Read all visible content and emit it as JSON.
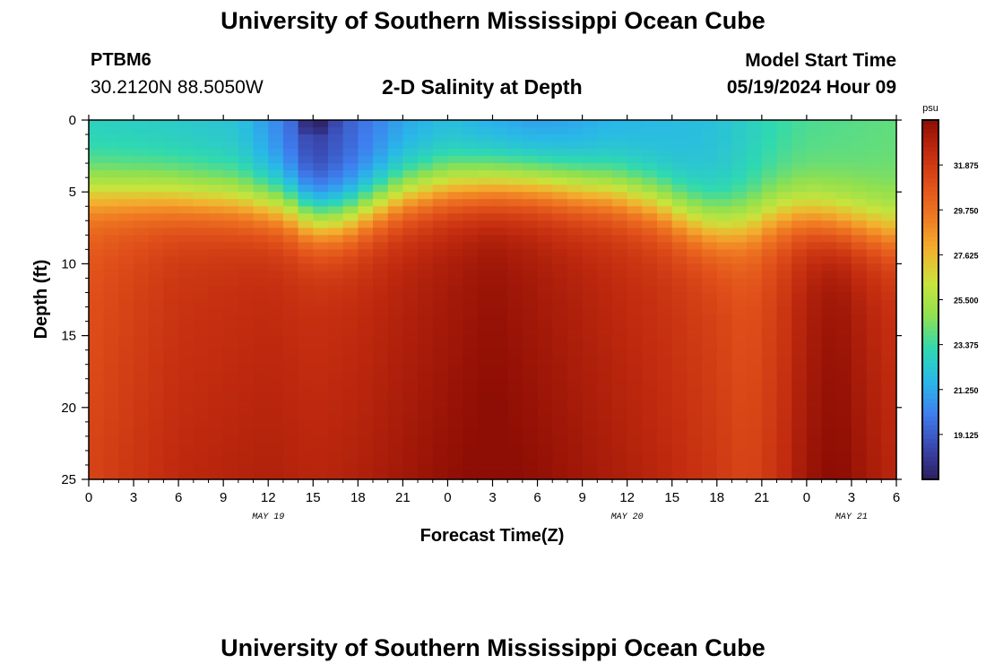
{
  "page": {
    "title": "University of Southern Mississippi Ocean Cube",
    "footer_title": "University of Southern Mississippi Ocean Cube"
  },
  "station": {
    "id": "PTBM6",
    "coords": "30.2120N  88.5050W"
  },
  "model": {
    "start_label": "Model Start Time",
    "start_value": "05/19/2024 Hour 09"
  },
  "colors": {
    "scale": [
      "#2c1e5e",
      "#3a48b0",
      "#3f7ef0",
      "#29b8e8",
      "#2fd9b0",
      "#8fe050",
      "#c8e43c",
      "#f2b22e",
      "#f07a22",
      "#e0501a",
      "#c32c0f",
      "#8e0d04"
    ]
  },
  "chart_data": {
    "type": "heatmap",
    "title": "2-D Salinity at Depth",
    "xlabel": "Forecast Time(Z)",
    "ylabel": "Depth (ft)",
    "x_tick_labels": [
      "0",
      "3",
      "6",
      "9",
      "12",
      "15",
      "18",
      "21",
      "0",
      "3",
      "6",
      "9",
      "12",
      "15",
      "18",
      "21",
      "0",
      "3",
      "6"
    ],
    "x_range_hours": [
      0,
      54
    ],
    "date_labels": [
      {
        "label": "MAY 19",
        "hour": 12
      },
      {
        "label": "MAY 20",
        "hour": 36
      },
      {
        "label": "MAY 21",
        "hour": 51
      }
    ],
    "y_ticks": [
      0,
      5,
      10,
      15,
      20,
      25
    ],
    "ylim": [
      0,
      25
    ],
    "y_inverted": true,
    "colorbar": {
      "unit": "psu",
      "range": [
        17.0,
        34.0
      ],
      "tick_labels": [
        "31.875",
        "29.750",
        "27.625",
        "25.500",
        "23.375",
        "21.250",
        "19.125"
      ]
    },
    "surface_layer": [
      {
        "hour": 0,
        "top": 22.6,
        "depth_ft": 5.0
      },
      {
        "hour": 5,
        "top": 22.4,
        "depth_ft": 5.2
      },
      {
        "hour": 10,
        "top": 22.0,
        "depth_ft": 5.6
      },
      {
        "hour": 13,
        "top": 20.0,
        "depth_ft": 6.0
      },
      {
        "hour": 15,
        "top": 18.0,
        "depth_ft": 6.8
      },
      {
        "hour": 17,
        "top": 19.0,
        "depth_ft": 6.8
      },
      {
        "hour": 19,
        "top": 20.0,
        "depth_ft": 6.0
      },
      {
        "hour": 21,
        "top": 21.0,
        "depth_ft": 5.2
      },
      {
        "hour": 24,
        "top": 21.6,
        "depth_ft": 4.6
      },
      {
        "hour": 27,
        "top": 21.0,
        "depth_ft": 4.4
      },
      {
        "hour": 30,
        "top": 20.6,
        "depth_ft": 4.4
      },
      {
        "hour": 33,
        "top": 21.0,
        "depth_ft": 4.8
      },
      {
        "hour": 35,
        "top": 21.4,
        "depth_ft": 5.0
      },
      {
        "hour": 38,
        "top": 21.6,
        "depth_ft": 5.8
      },
      {
        "hour": 40,
        "top": 21.8,
        "depth_ft": 6.8
      },
      {
        "hour": 42,
        "top": 22.0,
        "depth_ft": 7.4
      },
      {
        "hour": 44,
        "top": 22.6,
        "depth_ft": 7.2
      },
      {
        "hour": 46,
        "top": 23.2,
        "depth_ft": 6.6
      },
      {
        "hour": 48,
        "top": 23.6,
        "depth_ft": 6.6
      },
      {
        "hour": 51,
        "top": 23.8,
        "depth_ft": 7.2
      },
      {
        "hour": 54,
        "top": 24.0,
        "depth_ft": 7.8
      }
    ],
    "deep_profile": [
      {
        "hour": 0,
        "base": 30.8
      },
      {
        "hour": 6,
        "base": 32.0
      },
      {
        "hour": 12,
        "base": 32.4
      },
      {
        "hour": 15,
        "base": 32.2
      },
      {
        "hour": 18,
        "base": 32.4
      },
      {
        "hour": 21,
        "base": 32.8
      },
      {
        "hour": 24,
        "base": 33.2
      },
      {
        "hour": 27,
        "base": 33.6
      },
      {
        "hour": 30,
        "base": 33.2
      },
      {
        "hour": 33,
        "base": 32.8
      },
      {
        "hour": 36,
        "base": 32.4
      },
      {
        "hour": 39,
        "base": 32.0
      },
      {
        "hour": 42,
        "base": 31.4
      },
      {
        "hour": 44,
        "base": 30.8
      },
      {
        "hour": 46,
        "base": 31.6
      },
      {
        "hour": 48,
        "base": 33.0
      },
      {
        "hour": 50,
        "base": 33.6
      },
      {
        "hour": 52,
        "base": 32.8
      },
      {
        "hour": 54,
        "base": 32.2
      }
    ],
    "fresh_spots": [
      {
        "hour": 15.2,
        "depth_ft": 0.3,
        "value": 17.0
      }
    ]
  }
}
